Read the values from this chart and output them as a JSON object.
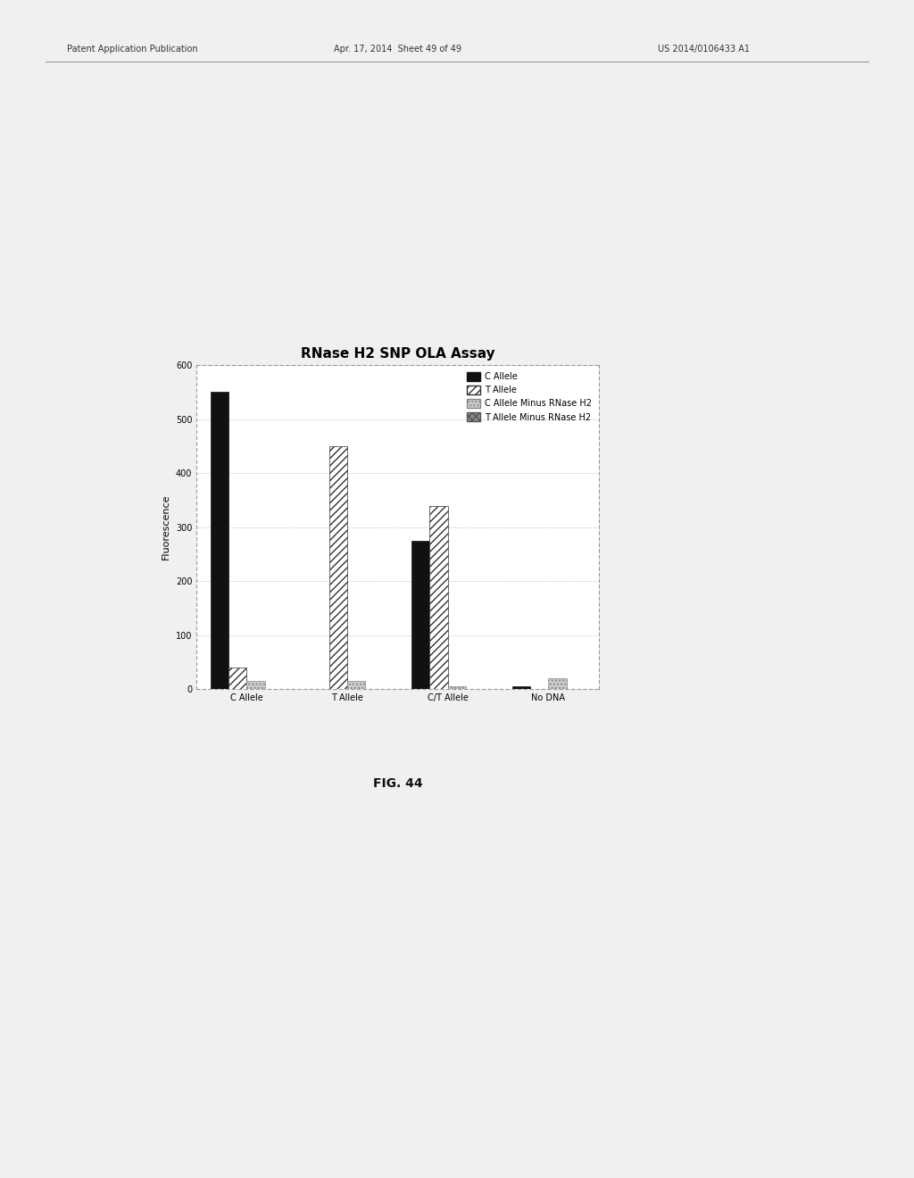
{
  "title": "RNase H2 SNP OLA Assay",
  "ylabel": "Fluorescence",
  "categories": [
    "C Allele",
    "T Allele",
    "C/T Allele",
    "No DNA"
  ],
  "series": {
    "C Allele": [
      550,
      0,
      275,
      5
    ],
    "T Allele": [
      40,
      450,
      340,
      0
    ],
    "C Allele Minus RNase H2": [
      15,
      15,
      5,
      20
    ],
    "T Allele Minus RNase H2": [
      0,
      0,
      0,
      0
    ]
  },
  "ylim": [
    0,
    600
  ],
  "yticks": [
    0,
    100,
    200,
    300,
    400,
    500,
    600
  ],
  "bar_width": 0.18,
  "figure_bgcolor": "#f0f0f0",
  "chart_bgcolor": "#ffffff",
  "border_color": "#999999",
  "grid_color": "#aaaaaa",
  "title_fontsize": 11,
  "axis_fontsize": 8,
  "tick_fontsize": 7,
  "legend_fontsize": 7,
  "header_fontsize": 7,
  "fig_caption": "FIG. 44",
  "caption_fontsize": 10
}
